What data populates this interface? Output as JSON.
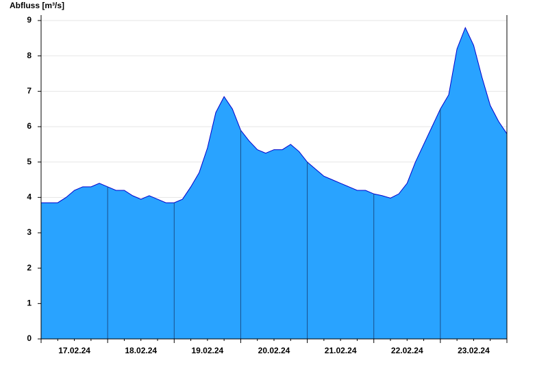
{
  "chart_data": {
    "type": "area",
    "y_label": "Abfluss [m³/s]",
    "categories": [
      null,
      null,
      null,
      null,
      "17.02.24",
      null,
      null,
      null,
      null,
      null,
      null,
      null,
      "18.02.24",
      null,
      null,
      null,
      null,
      null,
      null,
      null,
      "19.02.24",
      null,
      null,
      null,
      null,
      null,
      null,
      null,
      "20.02.24",
      null,
      null,
      null,
      null,
      null,
      null,
      null,
      "21.02.24",
      null,
      null,
      null,
      null,
      null,
      null,
      null,
      "22.02.24",
      null,
      null,
      null,
      null,
      null,
      null,
      null,
      "23.02.24",
      null,
      null,
      null,
      null
    ],
    "values": [
      3.85,
      3.85,
      3.85,
      4.0,
      4.2,
      4.3,
      4.3,
      4.4,
      4.3,
      4.2,
      4.2,
      4.05,
      3.95,
      4.05,
      3.95,
      3.85,
      3.85,
      3.95,
      4.3,
      4.7,
      5.4,
      6.4,
      6.85,
      6.5,
      5.9,
      5.6,
      5.35,
      5.25,
      5.35,
      5.35,
      5.5,
      5.3,
      5.0,
      4.8,
      4.6,
      4.5,
      4.4,
      4.3,
      4.2,
      4.2,
      4.1,
      4.05,
      3.98,
      4.1,
      4.4,
      5.0,
      5.5,
      6.0,
      6.5,
      6.9,
      8.2,
      8.8,
      8.3,
      7.4,
      6.6,
      6.15,
      5.8
    ],
    "color": "#29a3ff",
    "line_color": "#0000cc",
    "ylim": [
      0,
      9
    ],
    "yticks": [
      0,
      1,
      2,
      3,
      4,
      5,
      6,
      7,
      8,
      9
    ],
    "grid": true
  }
}
